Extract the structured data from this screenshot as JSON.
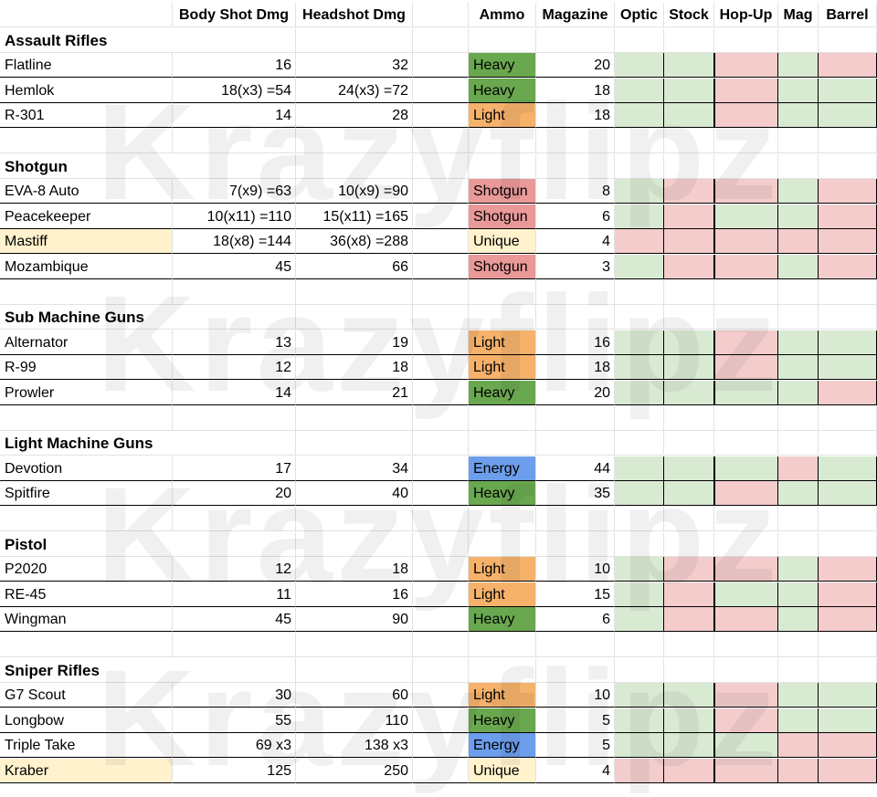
{
  "headers": [
    "",
    "Body Shot Dmg",
    "Headshot Dmg",
    "",
    "Ammo",
    "Magazine",
    "Optic",
    "Stock",
    "Hop-Up",
    "Mag",
    "Barrel"
  ],
  "watermark": "Krazyflipz",
  "ammo_colors": {
    "Heavy": "#6aa84f",
    "Light": "#f6b26b",
    "Shotgun": "#ea9999",
    "Unique": "#fff2cc",
    "Energy": "#6d9eeb"
  },
  "attachment_colors": {
    "green": "#d9ead3",
    "red": "#f4cccc"
  },
  "name_highlight_color": "#fff2cc",
  "categories": [
    {
      "name": "Assault Rifles",
      "weapons": [
        {
          "name": "Flatline",
          "body": "16",
          "head": "32",
          "ammo": "Heavy",
          "mag": "20",
          "attachments": [
            "green",
            "green",
            "red",
            "green",
            "red"
          ]
        },
        {
          "name": "Hemlok",
          "body": "18(x3) =54",
          "head": "24(x3) =72",
          "ammo": "Heavy",
          "mag": "18",
          "attachments": [
            "green",
            "green",
            "red",
            "green",
            "green"
          ]
        },
        {
          "name": "R-301",
          "body": "14",
          "head": "28",
          "ammo": "Light",
          "mag": "18",
          "attachments": [
            "green",
            "green",
            "red",
            "green",
            "green"
          ]
        }
      ]
    },
    {
      "name": "Shotgun",
      "weapons": [
        {
          "name": "EVA-8 Auto",
          "body": "7(x9) =63",
          "head": "10(x9) =90",
          "ammo": "Shotgun",
          "mag": "8",
          "attachments": [
            "green",
            "red",
            "red",
            "green",
            "red"
          ]
        },
        {
          "name": "Peacekeeper",
          "body": "10(x11) =110",
          "head": "15(x11) =165",
          "ammo": "Shotgun",
          "mag": "6",
          "attachments": [
            "green",
            "red",
            "green",
            "green",
            "red"
          ]
        },
        {
          "name": "Mastiff",
          "highlight": true,
          "body": "18(x8) =144",
          "head": "36(x8) =288",
          "ammo": "Unique",
          "mag": "4",
          "attachments": [
            "red",
            "red",
            "red",
            "red",
            "red"
          ]
        },
        {
          "name": "Mozambique",
          "body": "45",
          "head": "66",
          "ammo": "Shotgun",
          "mag": "3",
          "attachments": [
            "green",
            "red",
            "red",
            "green",
            "red"
          ]
        }
      ]
    },
    {
      "name": "Sub Machine Guns",
      "weapons": [
        {
          "name": "Alternator",
          "body": "13",
          "head": "19",
          "ammo": "Light",
          "mag": "16",
          "attachments": [
            "green",
            "green",
            "red",
            "green",
            "green"
          ]
        },
        {
          "name": "R-99",
          "body": "12",
          "head": "18",
          "ammo": "Light",
          "mag": "18",
          "attachments": [
            "green",
            "green",
            "red",
            "green",
            "green"
          ]
        },
        {
          "name": "Prowler",
          "body": "14",
          "head": "21",
          "ammo": "Heavy",
          "mag": "20",
          "attachments": [
            "green",
            "green",
            "green",
            "green",
            "red"
          ]
        }
      ]
    },
    {
      "name": "Light Machine Guns",
      "weapons": [
        {
          "name": "Devotion",
          "body": "17",
          "head": "34",
          "ammo": "Energy",
          "mag": "44",
          "attachments": [
            "green",
            "green",
            "green",
            "red",
            "green"
          ]
        },
        {
          "name": "Spitfire",
          "body": "20",
          "head": "40",
          "ammo": "Heavy",
          "mag": "35",
          "attachments": [
            "green",
            "green",
            "red",
            "green",
            "green"
          ]
        }
      ]
    },
    {
      "name": "Pistol",
      "weapons": [
        {
          "name": "P2020",
          "body": "12",
          "head": "18",
          "ammo": "Light",
          "mag": "10",
          "attachments": [
            "green",
            "red",
            "red",
            "green",
            "red"
          ]
        },
        {
          "name": "RE-45",
          "body": "11",
          "head": "16",
          "ammo": "Light",
          "mag": "15",
          "attachments": [
            "green",
            "red",
            "green",
            "green",
            "red"
          ]
        },
        {
          "name": "Wingman",
          "body": "45",
          "head": "90",
          "ammo": "Heavy",
          "mag": "6",
          "attachments": [
            "green",
            "red",
            "red",
            "green",
            "red"
          ]
        }
      ]
    },
    {
      "name": "Sniper Rifles",
      "weapons": [
        {
          "name": "G7 Scout",
          "body": "30",
          "head": "60",
          "ammo": "Light",
          "mag": "10",
          "attachments": [
            "green",
            "green",
            "red",
            "green",
            "green"
          ]
        },
        {
          "name": "Longbow",
          "body": "55",
          "head": "110",
          "ammo": "Heavy",
          "mag": "5",
          "attachments": [
            "green",
            "green",
            "red",
            "green",
            "green"
          ]
        },
        {
          "name": "Triple Take",
          "body": "69 x3",
          "head": "138 x3",
          "ammo": "Energy",
          "mag": "5",
          "attachments": [
            "green",
            "green",
            "green",
            "red",
            "red"
          ]
        },
        {
          "name": "Kraber",
          "highlight": true,
          "body": "125",
          "head": "250",
          "ammo": "Unique",
          "mag": "4",
          "attachments": [
            "red",
            "red",
            "red",
            "red",
            "red"
          ]
        }
      ]
    }
  ]
}
